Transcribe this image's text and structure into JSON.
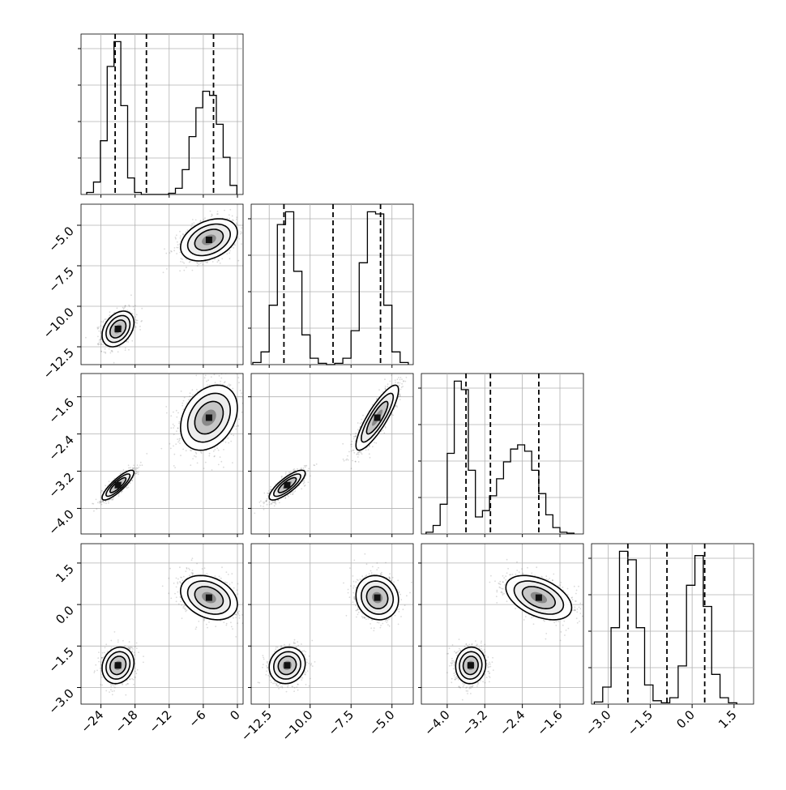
{
  "chart_data": {
    "type": "corner",
    "parameters": [
      {
        "ticks": [
          -24,
          -18,
          -12,
          -6,
          0
        ],
        "tick_labels": [
          "−24",
          "−18",
          "−12",
          "−6",
          "0"
        ],
        "range": [
          -27.5,
          1.0
        ]
      },
      {
        "ticks": [
          -12.5,
          -10.0,
          -7.5,
          -5.0
        ],
        "tick_labels": [
          "−12.5",
          "−10.0",
          "−7.5",
          "−5.0"
        ],
        "range": [
          -13.6,
          -3.7
        ]
      },
      {
        "ticks": [
          -4.0,
          -3.2,
          -2.4,
          -1.6
        ],
        "tick_labels": [
          "−4.0",
          "−3.2",
          "−2.4",
          "−1.6"
        ],
        "range": [
          -4.55,
          -1.1
        ]
      },
      {
        "ticks": [
          -3.0,
          -1.5,
          0.0,
          1.5
        ],
        "tick_labels": [
          "−3.0",
          "−1.5",
          "0.0",
          "1.5"
        ],
        "range": [
          -3.6,
          2.2
        ]
      }
    ],
    "quantiles": [
      [
        -21.5,
        -16.0,
        -4.2
      ],
      [
        -11.6,
        -8.6,
        -5.7
      ],
      [
        -3.6,
        -3.08,
        -2.05
      ],
      [
        -2.3,
        -0.9,
        0.45
      ]
    ],
    "histograms": [
      {
        "bin_edges": [
          -26.5,
          -25.3,
          -24.1,
          -22.9,
          -21.7,
          -20.5,
          -19.3,
          -18.1,
          -16.9,
          -15.7,
          -14.5,
          -13.3,
          -12.1,
          -10.9,
          -9.7,
          -8.5,
          -7.3,
          -6.1,
          -4.9,
          -3.7,
          -2.5,
          -1.3,
          -0.1
        ],
        "counts": [
          5,
          30,
          130,
          310,
          370,
          215,
          40,
          5,
          0,
          0,
          0,
          0,
          3,
          15,
          60,
          140,
          210,
          250,
          240,
          170,
          90,
          22
        ]
      },
      {
        "bin_edges": [
          -13.5,
          -13.0,
          -12.5,
          -12.0,
          -11.5,
          -11.0,
          -10.5,
          -10.0,
          -9.5,
          -9.0,
          -8.5,
          -8.0,
          -7.5,
          -7.0,
          -6.5,
          -6.0,
          -5.5,
          -5.0,
          -4.5,
          -4.0
        ],
        "counts": [
          5,
          30,
          140,
          330,
          360,
          220,
          70,
          15,
          3,
          0,
          3,
          15,
          80,
          240,
          360,
          355,
          140,
          30,
          5
        ]
      },
      {
        "bin_edges": [
          -4.45,
          -4.3,
          -4.15,
          -4.0,
          -3.85,
          -3.7,
          -3.55,
          -3.4,
          -3.25,
          -3.1,
          -2.95,
          -2.8,
          -2.65,
          -2.5,
          -2.35,
          -2.2,
          -2.05,
          -1.9,
          -1.75,
          -1.6,
          -1.45,
          -1.3
        ],
        "counts": [
          4,
          20,
          70,
          190,
          360,
          340,
          150,
          40,
          55,
          90,
          130,
          170,
          200,
          210,
          195,
          150,
          95,
          45,
          15,
          4,
          2
        ]
      },
      {
        "bin_edges": [
          -3.5,
          -3.2,
          -2.9,
          -2.6,
          -2.3,
          -2.0,
          -1.7,
          -1.4,
          -1.1,
          -0.8,
          -0.5,
          -0.2,
          0.1,
          0.4,
          0.7,
          1.0,
          1.3,
          1.6
        ],
        "counts": [
          5,
          40,
          180,
          360,
          340,
          180,
          45,
          8,
          3,
          15,
          90,
          280,
          350,
          230,
          70,
          15,
          3
        ]
      }
    ],
    "modes": [
      {
        "weight": 0.5,
        "mean": [
          -21.0,
          -11.4,
          -3.5,
          -2.2
        ],
        "sd": [
          1.4,
          0.55,
          0.16,
          0.33
        ],
        "corr": {
          "0-1": 0.35,
          "0-2": 0.85,
          "0-3": 0.15,
          "1-2": 0.8,
          "1-3": 0.1,
          "2-3": 0.05
        }
      },
      {
        "weight": 0.5,
        "mean": [
          -5.0,
          -5.9,
          -2.05,
          0.25
        ],
        "sd": [
          2.5,
          0.65,
          0.35,
          0.4
        ],
        "corr": {
          "0-1": 0.35,
          "0-2": 0.3,
          "0-3": -0.3,
          "1-2": 0.85,
          "1-3": -0.1,
          "2-3": -0.45
        }
      }
    ],
    "grid": true,
    "title": "",
    "xlabel": "",
    "ylabel": ""
  }
}
